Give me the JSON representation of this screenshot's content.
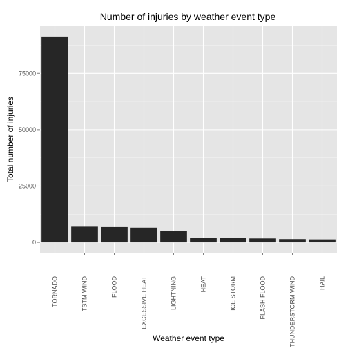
{
  "chart_data": {
    "type": "bar",
    "title": "Number of injuries by weather event type",
    "xlabel": "Weather event type",
    "ylabel": "Total number of injuries",
    "categories": [
      "TORNADO",
      "TSTM WIND",
      "FLOOD",
      "EXCESSIVE HEAT",
      "LIGHTNING",
      "HEAT",
      "ICE STORM",
      "FLASH FLOOD",
      "THUNDERSTORM WIND",
      "HAIL"
    ],
    "values": [
      91346,
      6957,
      6789,
      6525,
      5230,
      2100,
      1975,
      1777,
      1488,
      1361
    ],
    "yticks": [
      0,
      25000,
      50000,
      75000
    ],
    "ytick_labels": [
      "0",
      "25000",
      "50000",
      "75000"
    ],
    "ylim": [
      -4567,
      95913
    ],
    "grid": true,
    "legend": "none",
    "colors": {
      "bar": "#262626",
      "panel": "#e5e5e5",
      "grid_major": "#ffffff",
      "grid_minor": "#f2f2f2",
      "tick_text": "#4d4d4d",
      "tick_mark": "#7f7f7f"
    }
  }
}
